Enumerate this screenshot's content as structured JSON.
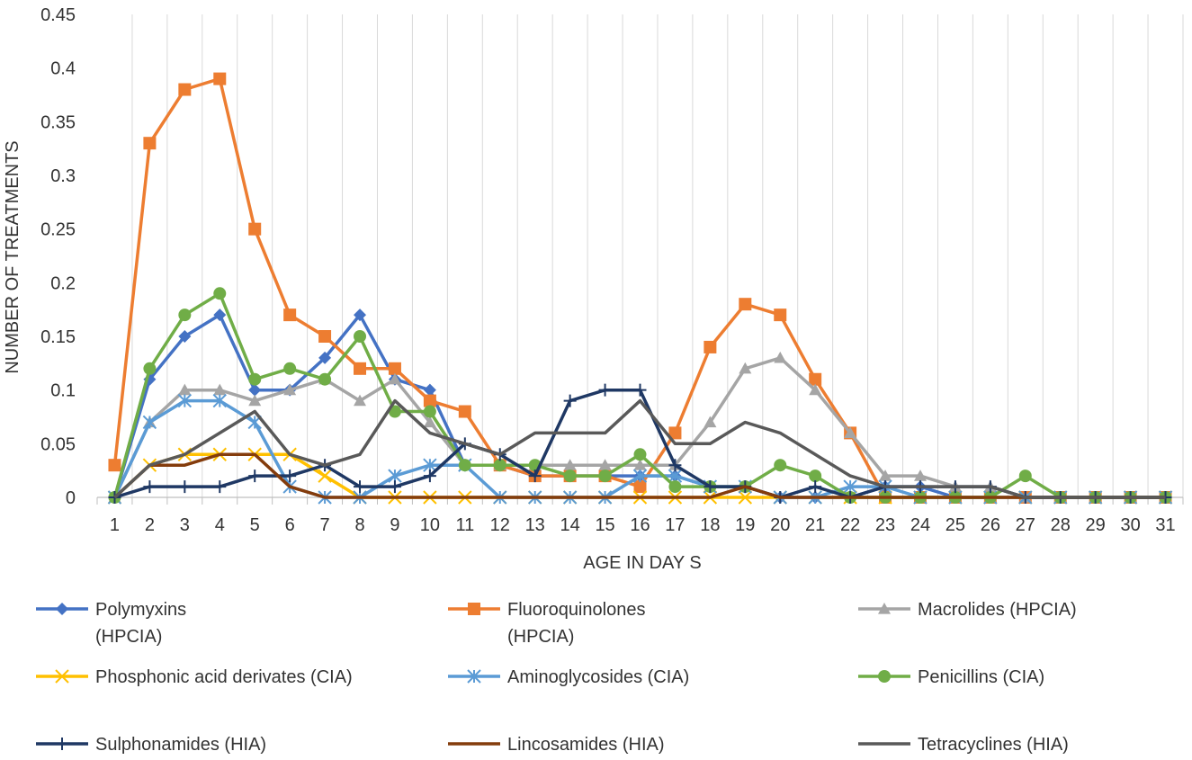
{
  "chart_data": {
    "type": "line",
    "title": "",
    "xlabel": "AGE IN DAY S",
    "ylabel": "NUMBER OF TREATMENTS",
    "ylim": [
      0,
      0.45
    ],
    "yticks": [
      "0",
      "0.05",
      "0.1",
      "0.15",
      "0.2",
      "0.25",
      "0.3",
      "0.35",
      "0.4",
      "0.45"
    ],
    "categories": [
      "1",
      "2",
      "3",
      "4",
      "5",
      "6",
      "7",
      "8",
      "9",
      "10",
      "11",
      "12",
      "13",
      "14",
      "15",
      "16",
      "17",
      "18",
      "19",
      "20",
      "21",
      "22",
      "23",
      "24",
      "25",
      "26",
      "27",
      "28",
      "29",
      "30",
      "31"
    ],
    "grid": "vertical",
    "legend_position": "bottom",
    "series": [
      {
        "name": "Polymyxins (HPCIA)",
        "legend_lines": [
          "Polymyxins",
          "(HPCIA)"
        ],
        "color": "#4472C4",
        "marker": "diamond",
        "values": [
          0,
          0.11,
          0.15,
          0.17,
          0.1,
          0.1,
          0.13,
          0.17,
          0.11,
          0.1,
          0.03,
          0.03,
          0.02,
          0.02,
          0.02,
          0.02,
          0.02,
          0.01,
          0.01,
          0,
          0,
          0,
          0.01,
          0.01,
          0,
          0,
          0,
          0,
          0,
          0,
          0
        ]
      },
      {
        "name": "Fluoroquinolones (HPCIA)",
        "legend_lines": [
          "Fluoroquinolones",
          "(HPCIA)"
        ],
        "color": "#ED7D31",
        "marker": "square",
        "values": [
          0.03,
          0.33,
          0.38,
          0.39,
          0.25,
          0.17,
          0.15,
          0.12,
          0.12,
          0.09,
          0.08,
          0.03,
          0.02,
          0.02,
          0.02,
          0.01,
          0.06,
          0.14,
          0.18,
          0.17,
          0.11,
          0.06,
          0,
          0,
          0,
          0,
          0,
          0,
          0,
          0,
          0
        ]
      },
      {
        "name": "Macrolides (HPCIA)",
        "legend_lines": [
          "Macrolides (HPCIA)"
        ],
        "color": "#A5A5A5",
        "marker": "triangle",
        "values": [
          0,
          0.07,
          0.1,
          0.1,
          0.09,
          0.1,
          0.11,
          0.09,
          0.11,
          0.07,
          0.03,
          0.03,
          0.03,
          0.03,
          0.03,
          0.03,
          0.03,
          0.07,
          0.12,
          0.13,
          0.1,
          0.06,
          0.02,
          0.02,
          0.01,
          0.01,
          0,
          0,
          0,
          0,
          0
        ]
      },
      {
        "name": "Phosphonic acid derivates (CIA)",
        "legend_lines": [
          "Phosphonic acid derivates (CIA)"
        ],
        "color": "#FFC000",
        "marker": "x",
        "values": [
          0,
          0.03,
          0.04,
          0.04,
          0.04,
          0.04,
          0.02,
          0,
          0,
          0,
          0,
          0,
          0,
          0,
          0,
          0,
          0,
          0,
          0,
          0,
          0,
          0,
          0,
          0,
          0,
          0,
          0,
          0,
          0,
          0,
          0
        ]
      },
      {
        "name": "Aminoglycosides (CIA)",
        "legend_lines": [
          "Aminoglycosides (CIA)"
        ],
        "color": "#5B9BD5",
        "marker": "star",
        "values": [
          0,
          0.07,
          0.09,
          0.09,
          0.07,
          0.01,
          0,
          0,
          0.02,
          0.03,
          0.03,
          0,
          0,
          0,
          0,
          0.02,
          0.02,
          0.01,
          0.01,
          0,
          0,
          0.01,
          0.01,
          0,
          0,
          0,
          0,
          0,
          0,
          0,
          0
        ]
      },
      {
        "name": "Penicillins (CIA)",
        "legend_lines": [
          "Penicillins (CIA)"
        ],
        "color": "#70AD47",
        "marker": "circle",
        "values": [
          0,
          0.12,
          0.17,
          0.19,
          0.11,
          0.12,
          0.11,
          0.15,
          0.08,
          0.08,
          0.03,
          0.03,
          0.03,
          0.02,
          0.02,
          0.04,
          0.01,
          0.01,
          0.01,
          0.03,
          0.02,
          0,
          0,
          0,
          0,
          0,
          0.02,
          0,
          0,
          0,
          0
        ]
      },
      {
        "name": "Sulphonamides (HIA)",
        "legend_lines": [
          "Sulphonamides (HIA)"
        ],
        "color": "#1F3864",
        "marker": "plus",
        "values": [
          0,
          0.01,
          0.01,
          0.01,
          0.02,
          0.02,
          0.03,
          0.01,
          0.01,
          0.02,
          0.05,
          0.04,
          0.02,
          0.09,
          0.1,
          0.1,
          0.03,
          0.01,
          0.01,
          0,
          0.01,
          0,
          0.01,
          0.01,
          0.01,
          0.01,
          0,
          0,
          0,
          0,
          0
        ]
      },
      {
        "name": "Lincosamides (HIA)",
        "legend_lines": [
          "Lincosamides (HIA)"
        ],
        "color": "#843C0C",
        "marker": "none",
        "values": [
          0,
          0.03,
          0.03,
          0.04,
          0.04,
          0.01,
          0,
          0,
          0,
          0,
          0,
          0,
          0,
          0,
          0,
          0,
          0,
          0,
          0.01,
          0,
          0,
          0,
          0,
          0,
          0,
          0,
          0,
          0,
          0,
          0,
          0
        ]
      },
      {
        "name": "Tetracyclines (HIA)",
        "legend_lines": [
          "Tetracyclines (HIA)"
        ],
        "color": "#595959",
        "marker": "none",
        "values": [
          0,
          0.03,
          0.04,
          0.06,
          0.08,
          0.04,
          0.03,
          0.04,
          0.09,
          0.06,
          0.05,
          0.04,
          0.06,
          0.06,
          0.06,
          0.09,
          0.05,
          0.05,
          0.07,
          0.06,
          0.04,
          0.02,
          0.01,
          0.01,
          0.01,
          0.01,
          0,
          0,
          0,
          0,
          0
        ]
      }
    ]
  }
}
